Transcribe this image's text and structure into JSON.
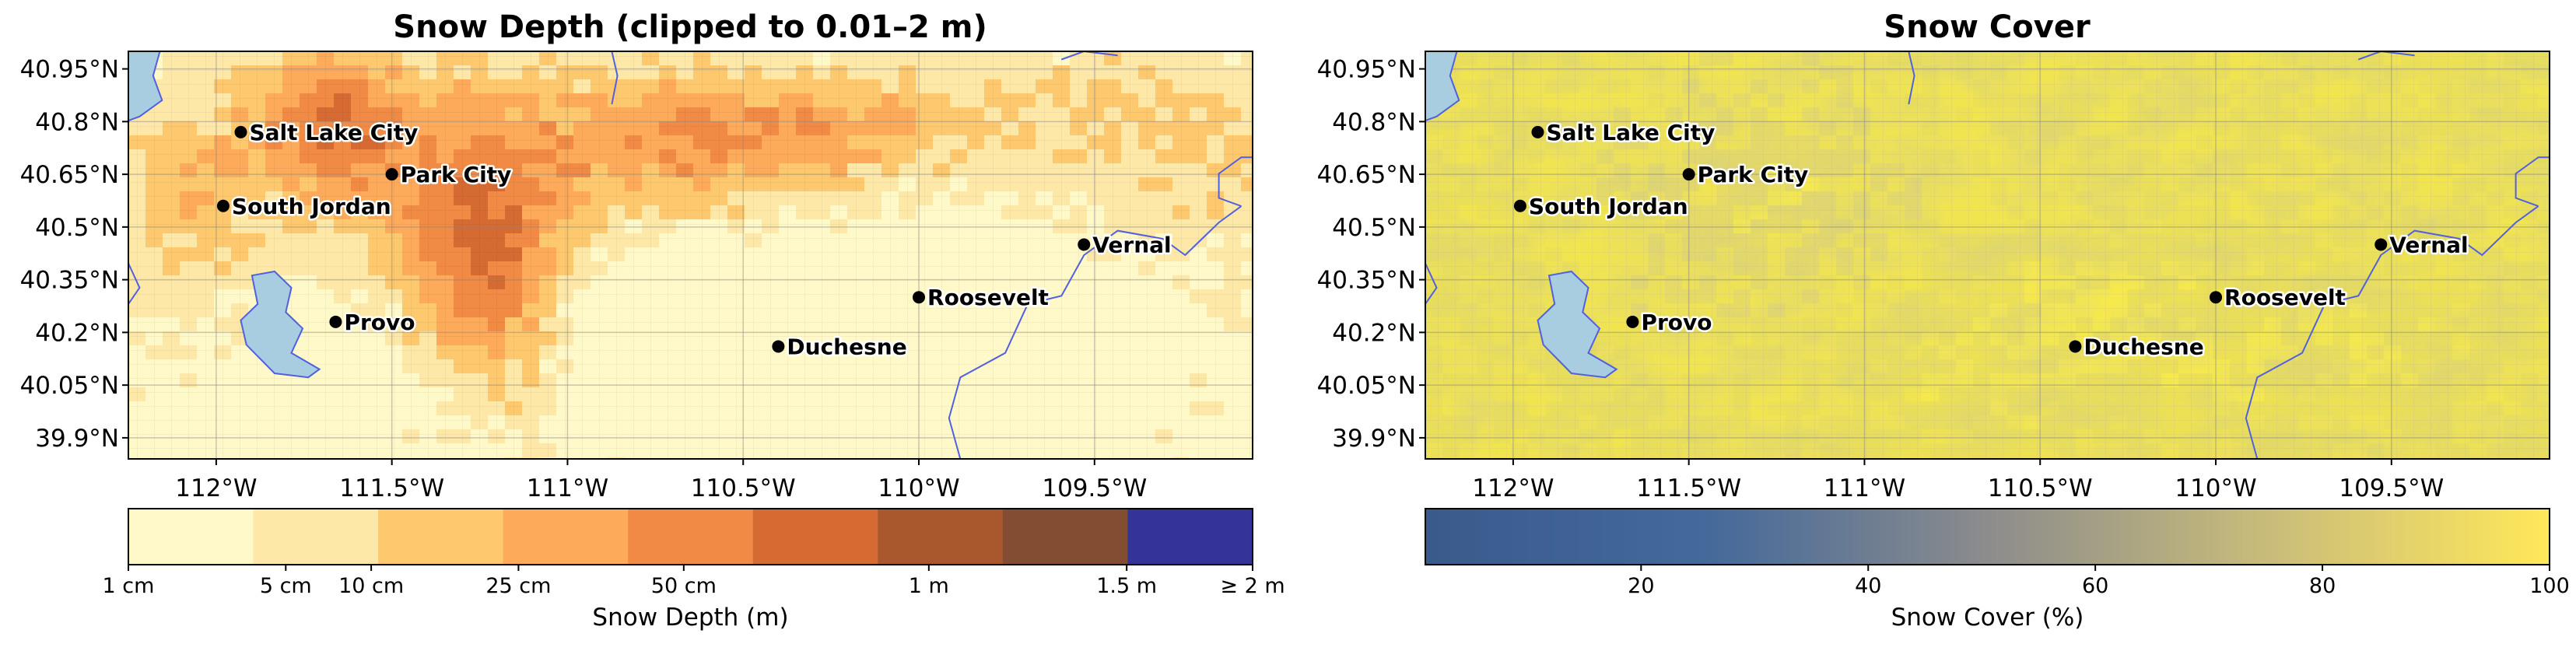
{
  "panels": [
    {
      "id": "depth",
      "title": "Snow Depth (clipped to 0.01–2 m)",
      "colorbar": {
        "label": "Snow Depth (m)",
        "kind": "discrete",
        "colors": [
          "#fff8c8",
          "#fee8a8",
          "#fec96e",
          "#fdaa5a",
          "#f08a44",
          "#d56b32",
          "#a9582e",
          "#834d33",
          "#333399"
        ],
        "tick_labels": [
          "1 cm",
          "5 cm",
          "10 cm",
          "25 cm",
          "50 cm",
          "1 m",
          "1.5 m",
          "≥ 2 m"
        ]
      }
    },
    {
      "id": "cover",
      "title": "Snow Cover",
      "colorbar": {
        "label": "Snow Cover (%)",
        "kind": "continuous",
        "range": [
          1,
          100
        ],
        "colors": [
          "#3a5a8c",
          "#44699b",
          "#8c8c8c",
          "#c9bc7a",
          "#ffe85a"
        ],
        "tick_labels": [
          "20",
          "40",
          "60",
          "80",
          "100"
        ]
      }
    }
  ],
  "map": {
    "lon_range": [
      -112.25,
      -109.05
    ],
    "lat_range": [
      39.84,
      41.0
    ],
    "lon_ticks": [
      "112°W",
      "111.5°W",
      "111°W",
      "110.5°W",
      "110°W",
      "109.5°W"
    ],
    "lat_ticks": [
      "40.95°N",
      "40.8°N",
      "40.65°N",
      "40.5°N",
      "40.35°N",
      "40.2°N",
      "40.05°N",
      "39.9°N"
    ],
    "grid": true
  },
  "cities": [
    {
      "name": "Salt Lake City",
      "lon": -111.93,
      "lat": 40.77
    },
    {
      "name": "Park City",
      "lon": -111.5,
      "lat": 40.65
    },
    {
      "name": "South Jordan",
      "lon": -111.98,
      "lat": 40.56
    },
    {
      "name": "Provo",
      "lon": -111.66,
      "lat": 40.23
    },
    {
      "name": "Duchesne",
      "lon": -110.4,
      "lat": 40.16
    },
    {
      "name": "Roosevelt",
      "lon": -110.0,
      "lat": 40.3
    },
    {
      "name": "Vernal",
      "lon": -109.53,
      "lat": 40.45
    }
  ]
}
